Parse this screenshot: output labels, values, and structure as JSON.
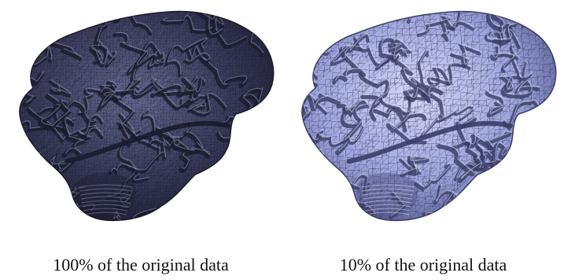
{
  "figure": {
    "panels": [
      {
        "caption": "100% of the original data",
        "surface_color": "#3a3c5c",
        "highlight_color": "#8a8fb4",
        "wire_color": "#1a1b2c",
        "mesh_density": "dense"
      },
      {
        "caption": "10% of the original data",
        "surface_color": "#9ea4dc",
        "highlight_color": "#d4d8f6",
        "wire_color": "#3a3d66",
        "mesh_density": "coarse"
      }
    ]
  }
}
